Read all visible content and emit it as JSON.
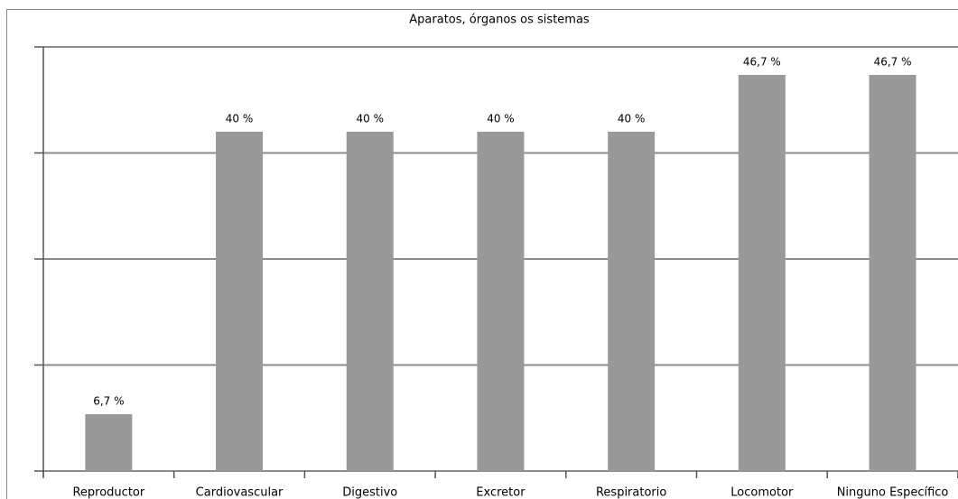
{
  "chart_data": {
    "type": "bar",
    "title": "Aparatos, órganos os sistemas",
    "categories": [
      "Reproductor",
      "Cardiovascular",
      "Digestivo",
      "Excretor",
      "Respiratorio",
      "Locomotor",
      "Ninguno Específico"
    ],
    "values": [
      6.7,
      40,
      40,
      40,
      40,
      46.7,
      46.7
    ],
    "value_labels": [
      "6,7 %",
      "40 %",
      "40 %",
      "40 %",
      "40 %",
      "46,7 %",
      "46,7 %"
    ],
    "color": "#999999",
    "ylim": [
      0,
      50
    ],
    "yticks": [
      0,
      12.5,
      25,
      37.5,
      50
    ],
    "grid": true
  }
}
